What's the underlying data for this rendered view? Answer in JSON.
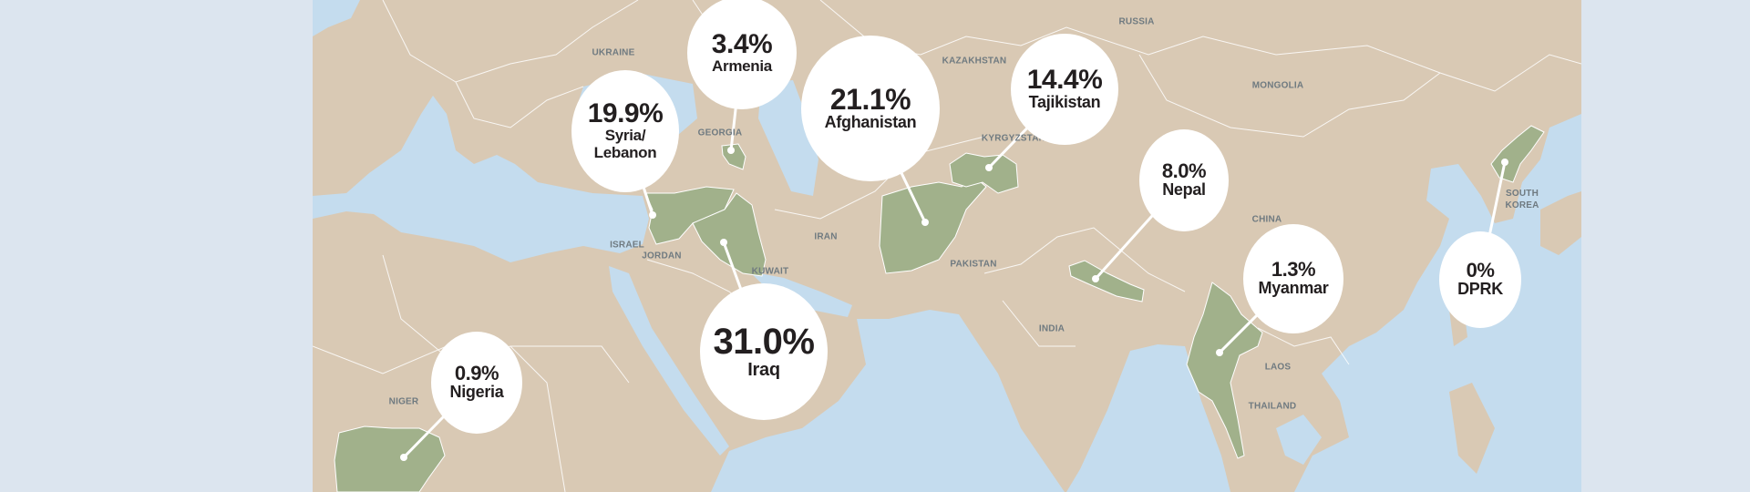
{
  "colors": {
    "background": "#dce5ef",
    "land": "#d9c9b4",
    "water": "#c4dcee",
    "highlight": "#a1b18b",
    "bubble": "#ffffff",
    "text": "#231f20",
    "label": "#6f7a80"
  },
  "country_labels": [
    "UKRAINE",
    "RUSSIA",
    "KAZAKHSTAN",
    "MONGOLIA",
    "GEORGIA",
    "KYRGYZSTAN",
    "IRAN",
    "ISRAEL",
    "JORDAN",
    "KUWAIT",
    "PAKISTAN",
    "CHINA",
    "SOUTH KOREA",
    "INDIA",
    "LAOS",
    "THAILAND",
    "NIGER"
  ],
  "callouts": [
    {
      "value": "3.4%",
      "name": "Armenia"
    },
    {
      "value": "19.9%",
      "name": "Syria/ Lebanon"
    },
    {
      "value": "21.1%",
      "name": "Afghanistan"
    },
    {
      "value": "14.4%",
      "name": "Tajikistan"
    },
    {
      "value": "8.0%",
      "name": "Nepal"
    },
    {
      "value": "1.3%",
      "name": "Myanmar"
    },
    {
      "value": "0%",
      "name": "DPRK"
    },
    {
      "value": "31.0%",
      "name": "Iraq"
    },
    {
      "value": "0.9%",
      "name": "Nigeria"
    }
  ]
}
